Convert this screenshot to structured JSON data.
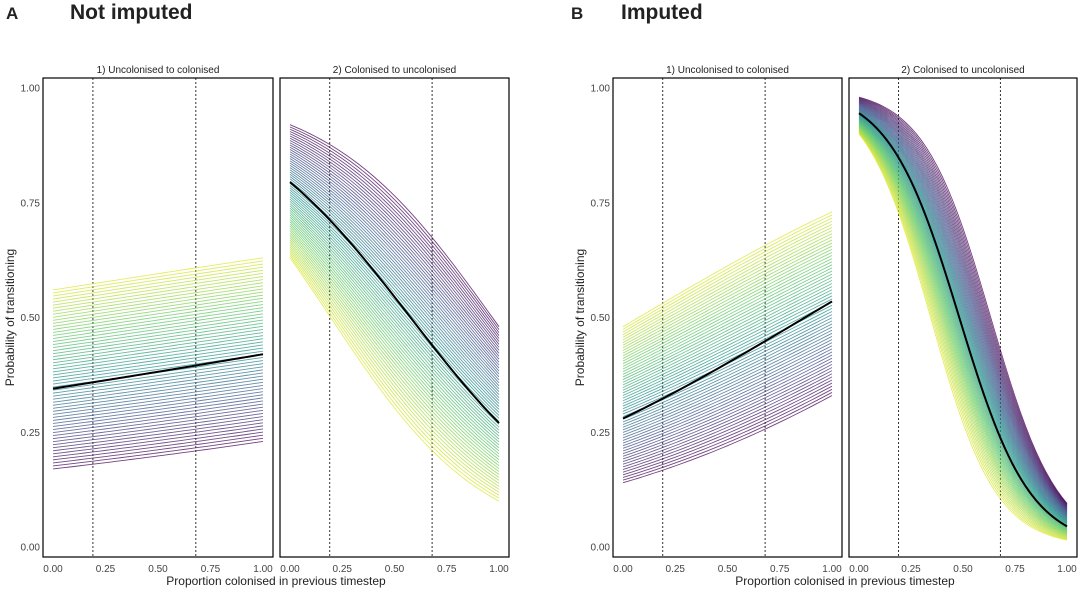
{
  "figure": {
    "panels": [
      {
        "letter": "A",
        "title": "Not imputed"
      },
      {
        "letter": "B",
        "title": "Imputed"
      }
    ]
  },
  "chart_data": [
    {
      "type": "line",
      "panel": "A",
      "title": "Not imputed",
      "xlabel": "Proportion colonised in previous timestep",
      "ylabel": "Probability of transitioning",
      "xlim": [
        0,
        1
      ],
      "ylim": [
        0,
        1
      ],
      "x_ticks": [
        "0.00",
        "0.25",
        "0.50",
        "0.75",
        "1.00"
      ],
      "y_ticks": [
        "0.00",
        "0.25",
        "0.50",
        "0.75",
        "1.00"
      ],
      "reference_lines_x": [
        0.19,
        0.68
      ],
      "grid": false,
      "facets": [
        {
          "label": "1) Uncolonised to colonised",
          "mean": {
            "start": 0.345,
            "end": 0.42
          },
          "ensemble": {
            "n": 60,
            "start_range": [
              0.17,
              0.56
            ],
            "end_range": [
              0.23,
              0.63
            ],
            "shape": "logistic"
          }
        },
        {
          "label": "2) Colonised to uncolonised",
          "mean": {
            "start": 0.795,
            "end": 0.27
          },
          "ensemble": {
            "n": 60,
            "start_range": [
              0.63,
              0.92
            ],
            "end_range": [
              0.1,
              0.48
            ],
            "shape": "logistic"
          }
        }
      ]
    },
    {
      "type": "line",
      "panel": "B",
      "title": "Imputed",
      "xlabel": "Proportion colonised in previous timestep",
      "ylabel": "Probability of transitioning",
      "xlim": [
        0,
        1
      ],
      "ylim": [
        0,
        1
      ],
      "x_ticks": [
        "0.00",
        "0.25",
        "0.50",
        "0.75",
        "1.00"
      ],
      "y_ticks": [
        "0.00",
        "0.25",
        "0.50",
        "0.75",
        "1.00"
      ],
      "reference_lines_x": [
        0.19,
        0.68
      ],
      "grid": false,
      "facets": [
        {
          "label": "1) Uncolonised to colonised",
          "mean": {
            "start": 0.28,
            "end": 0.535
          },
          "ensemble": {
            "n": 60,
            "start_range": [
              0.14,
              0.48
            ],
            "end_range": [
              0.33,
              0.73
            ],
            "shape": "logistic"
          }
        },
        {
          "label": "2) Colonised to uncolonised",
          "mean": {
            "start": 0.945,
            "end": 0.045
          },
          "ensemble": {
            "n": 60,
            "start_range": [
              0.9,
              0.98
            ],
            "end_range": [
              0.015,
              0.095
            ],
            "shape": "logistic"
          }
        }
      ]
    }
  ]
}
